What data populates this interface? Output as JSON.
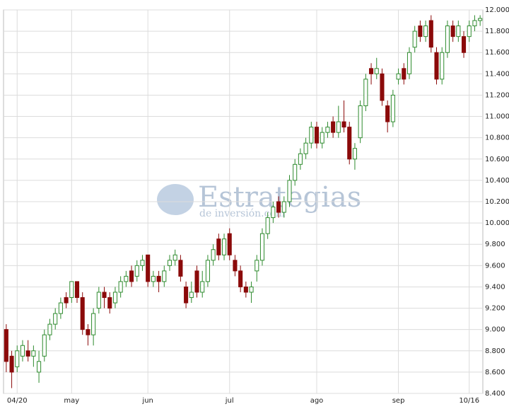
{
  "chart_data": {
    "type": "candlestick",
    "watermark": "Estrategias",
    "watermark_sub": "de inversión.com",
    "categories": [
      null,
      null,
      "04/20",
      null,
      null,
      null,
      null,
      null,
      null,
      null,
      null,
      null,
      "may",
      null,
      null,
      null,
      null,
      null,
      null,
      null,
      null,
      null,
      null,
      null,
      null,
      null,
      "jun",
      null,
      null,
      null,
      null,
      null,
      null,
      null,
      null,
      null,
      null,
      null,
      null,
      null,
      null,
      "jul",
      null,
      null,
      null,
      null,
      null,
      null,
      null,
      null,
      null,
      null,
      null,
      null,
      null,
      null,
      null,
      "ago",
      null,
      null,
      null,
      null,
      null,
      null,
      null,
      null,
      null,
      null,
      null,
      null,
      null,
      null,
      "sep",
      null,
      null,
      null,
      null,
      null,
      null,
      null,
      null,
      null,
      null,
      null,
      null,
      "10/16",
      null,
      null
    ],
    "series": [
      {
        "open": [
          9000,
          8750,
          8650,
          8750,
          8800,
          8750,
          8600,
          8750,
          8950,
          9050,
          9150,
          9300,
          9300,
          9450,
          9300,
          9000,
          8950,
          9200,
          9350,
          9300,
          9250,
          9350,
          9450,
          9550,
          9500,
          9600,
          9700,
          9450,
          9500,
          9450,
          9600,
          9650,
          9650,
          9400,
          9300,
          9550,
          9350,
          9450,
          9650,
          9850,
          9700,
          9900,
          9650,
          9550,
          9400,
          9350,
          9550,
          9650,
          9900,
          10050,
          10200,
          10100,
          10200,
          10400,
          10550,
          10650,
          10750,
          10900,
          10750,
          10850,
          10950,
          10850,
          10950,
          10900,
          10600,
          10800,
          11100,
          11450,
          11400,
          11400,
          11100,
          10950,
          11350,
          11450,
          11400,
          11650,
          11850,
          11750,
          11900,
          11600,
          11350,
          11600,
          11850,
          11750,
          11750,
          11750,
          11850,
          11900
        ],
        "high": [
          9050,
          8800,
          8850,
          8900,
          8900,
          8850,
          8800,
          9000,
          9100,
          9200,
          9300,
          9350,
          9450,
          9450,
          9350,
          9050,
          9200,
          9400,
          9400,
          9350,
          9400,
          9500,
          9550,
          9600,
          9650,
          9700,
          9700,
          9550,
          9550,
          9600,
          9700,
          9750,
          9700,
          9450,
          9450,
          9600,
          9550,
          9700,
          9800,
          9900,
          9900,
          9950,
          9700,
          9600,
          9450,
          9450,
          9700,
          9950,
          10100,
          10200,
          10250,
          10250,
          10450,
          10600,
          10700,
          10800,
          10950,
          10950,
          10900,
          10950,
          11000,
          11100,
          11150,
          10950,
          10750,
          11150,
          11400,
          11500,
          11550,
          11450,
          11150,
          11250,
          11450,
          11500,
          11650,
          11850,
          11900,
          11900,
          11950,
          11650,
          11650,
          11900,
          11900,
          11900,
          11800,
          11900,
          11950,
          11950
        ],
        "low": [
          8600,
          8450,
          8600,
          8700,
          8700,
          8650,
          8500,
          8700,
          8900,
          9000,
          9100,
          9200,
          9250,
          9250,
          8950,
          8850,
          8850,
          9150,
          9200,
          9150,
          9200,
          9300,
          9400,
          9400,
          9450,
          9550,
          9400,
          9400,
          9350,
          9400,
          9550,
          9600,
          9450,
          9200,
          9250,
          9300,
          9300,
          9400,
          9600,
          9650,
          9650,
          9650,
          9500,
          9350,
          9300,
          9250,
          9450,
          9600,
          9850,
          10000,
          10050,
          10050,
          10150,
          10350,
          10500,
          10600,
          10700,
          10700,
          10700,
          10800,
          10800,
          10800,
          10850,
          10550,
          10500,
          10750,
          11050,
          11300,
          11350,
          11100,
          10850,
          10900,
          11300,
          11300,
          11350,
          11600,
          11700,
          11700,
          11600,
          11300,
          11300,
          11550,
          11700,
          11700,
          11550,
          11700,
          11800,
          11850
        ],
        "close": [
          8700,
          8600,
          8800,
          8850,
          8750,
          8800,
          8700,
          8950,
          9050,
          9150,
          9250,
          9250,
          9450,
          9300,
          9000,
          8950,
          9150,
          9350,
          9300,
          9200,
          9350,
          9450,
          9500,
          9450,
          9600,
          9650,
          9450,
          9500,
          9450,
          9550,
          9650,
          9700,
          9500,
          9250,
          9350,
          9350,
          9450,
          9650,
          9750,
          9700,
          9850,
          9700,
          9550,
          9400,
          9350,
          9400,
          9650,
          9900,
          10050,
          10150,
          10100,
          10200,
          10400,
          10550,
          10650,
          10750,
          10900,
          10750,
          10850,
          10900,
          10850,
          10950,
          10900,
          10600,
          10700,
          11100,
          11350,
          11400,
          11450,
          11150,
          10950,
          11200,
          11400,
          11350,
          11600,
          11800,
          11750,
          11850,
          11650,
          11350,
          11600,
          11850,
          11750,
          11850,
          11600,
          11850,
          11900,
          11920
        ]
      }
    ],
    "up_color": "#2e8b2e",
    "down_color": "#8b0a0a",
    "ylim": [
      8400,
      12000
    ],
    "yticks": [
      {
        "value": 8400,
        "label": "8.400"
      },
      {
        "value": 8600,
        "label": "8.600"
      },
      {
        "value": 8800,
        "label": "8.800"
      },
      {
        "value": 9000,
        "label": "9.000"
      },
      {
        "value": 9200,
        "label": "9.200"
      },
      {
        "value": 9400,
        "label": "9.400"
      },
      {
        "value": 9600,
        "label": "9.600"
      },
      {
        "value": 9800,
        "label": "9.800"
      },
      {
        "value": 10000,
        "label": "10.000"
      },
      {
        "value": 10200,
        "label": "10.200"
      },
      {
        "value": 10400,
        "label": "10.400"
      },
      {
        "value": 10600,
        "label": "10.600"
      },
      {
        "value": 10800,
        "label": "10.800"
      },
      {
        "value": 11000,
        "label": "11.000"
      },
      {
        "value": 11200,
        "label": "11.200"
      },
      {
        "value": 11400,
        "label": "11.400"
      },
      {
        "value": 11600,
        "label": "11.600"
      },
      {
        "value": 11800,
        "label": "11.800"
      },
      {
        "value": 12000,
        "label": "12.000"
      }
    ],
    "grid": true
  }
}
